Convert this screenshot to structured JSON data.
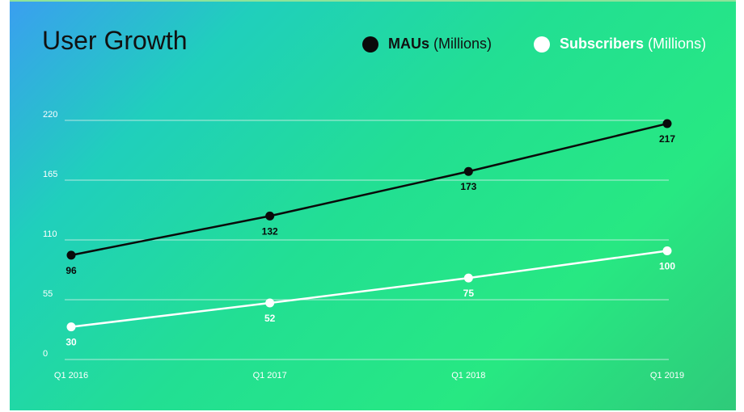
{
  "chart_data": {
    "type": "line",
    "title": "User Growth",
    "categories": [
      "Q1 2016",
      "Q1 2017",
      "Q1 2018",
      "Q1 2019"
    ],
    "yticks": [
      0,
      55,
      110,
      165,
      220
    ],
    "ylim": [
      0,
      220
    ],
    "grid": true,
    "legend_position": "top-right",
    "series": [
      {
        "key": "mau",
        "name_bold": "MAUs",
        "name_rest": "(Millions)",
        "values": [
          96,
          132,
          173,
          217
        ],
        "color": "#0a0a0a"
      },
      {
        "key": "sub",
        "name_bold": "Subscribers",
        "name_rest": "(Millions)",
        "values": [
          30,
          52,
          75,
          100
        ],
        "color": "#ffffff"
      }
    ]
  },
  "colors": {
    "grid": "#cfeee6",
    "title": "#111111"
  }
}
